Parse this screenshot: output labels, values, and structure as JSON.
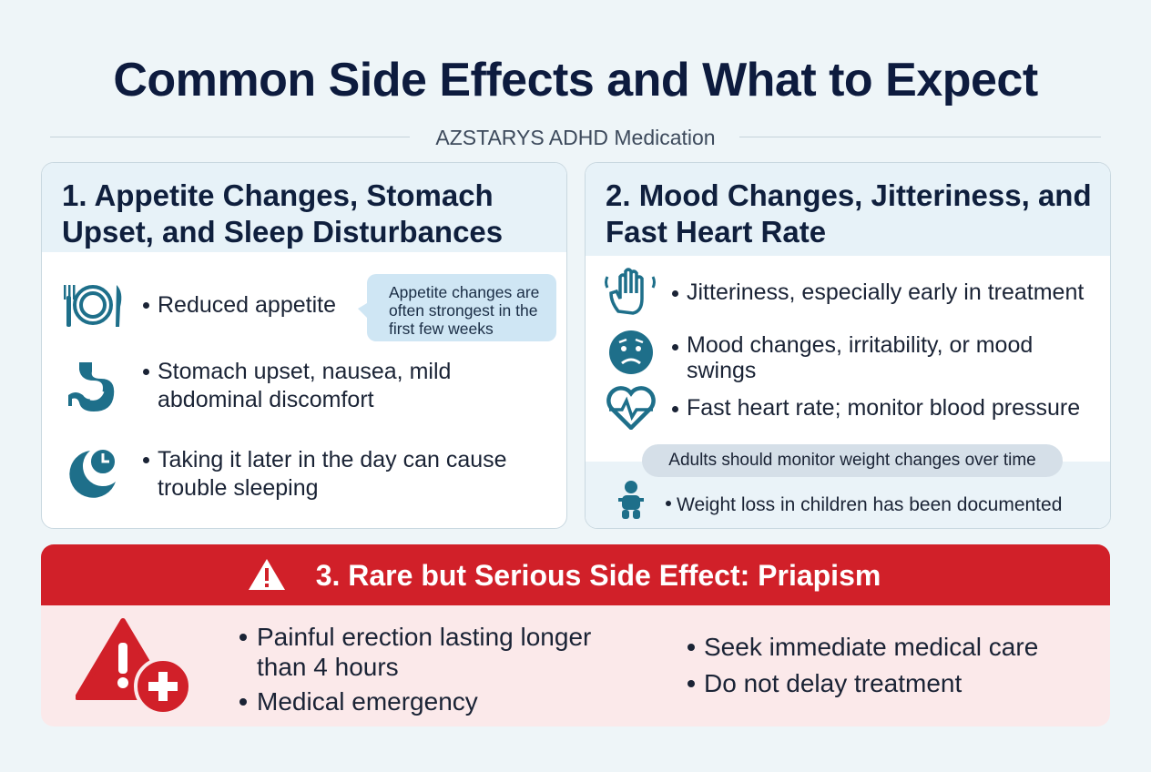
{
  "header": {
    "title": "Common Side Effects and What to Expect",
    "subtitle": "AZSTARYS ADHD Medication"
  },
  "sections": [
    {
      "title": "1. Appetite Changes, Stomach Upset, and Sleep Disturbances",
      "items": [
        "Reduced appetite",
        "Stomach upset, nausea, mild abdominal discomfort",
        "Taking it later in the day can cause trouble sleeping"
      ],
      "callout": "Appetite changes are often strongest in the first few weeks"
    },
    {
      "title": "2. Mood Changes, Jitteriness, and Fast Heart Rate",
      "items": [
        "Jitteriness, especially early in treatment",
        "Mood changes, irritability, or mood swings",
        "Fast heart rate; monitor blood pressure"
      ],
      "note": "Adults should monitor weight changes over time",
      "extra_item": "Weight loss in children has been documented"
    },
    {
      "title": "3. Rare but Serious Side Effect: Priapism",
      "items_left": [
        "Painful erection lasting longer than 4 hours",
        "Medical emergency"
      ],
      "items_right": [
        "Seek immediate medical care",
        "Do not delay treatment"
      ]
    }
  ]
}
